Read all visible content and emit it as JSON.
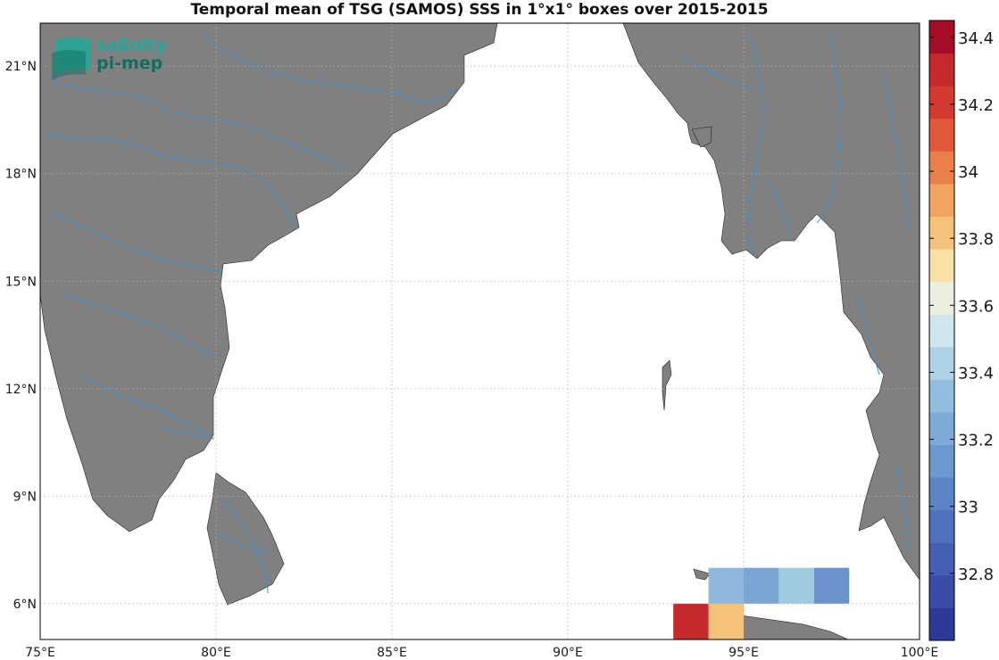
{
  "title": "Temporal mean of TSG (SAMOS) SSS in 1°x1° boxes over 2015-2015",
  "logo": {
    "line1": "salinity",
    "line2": "pi-mep"
  },
  "map": {
    "lon_range": [
      75,
      100
    ],
    "lat_range": [
      5,
      22.2
    ],
    "lon_ticks": [
      {
        "value": 75,
        "label": "75°E"
      },
      {
        "value": 80,
        "label": "80°E"
      },
      {
        "value": 85,
        "label": "85°E"
      },
      {
        "value": 90,
        "label": "90°E"
      },
      {
        "value": 95,
        "label": "95°E"
      },
      {
        "value": 100,
        "label": "100°E"
      }
    ],
    "lat_ticks": [
      {
        "value": 6,
        "label": "6°N"
      },
      {
        "value": 9,
        "label": "9°N"
      },
      {
        "value": 12,
        "label": "12°N"
      },
      {
        "value": 15,
        "label": "15°N"
      },
      {
        "value": 18,
        "label": "18°N"
      },
      {
        "value": 21,
        "label": "21°N"
      }
    ],
    "land_color": "#808080",
    "river_color": "#3a8fd0",
    "grid": true
  },
  "colorbar": {
    "range": [
      32.6,
      34.45
    ],
    "tick_labels": [
      "32.8",
      "33",
      "33.2",
      "33.4",
      "33.6",
      "33.8",
      "34",
      "34.2",
      "34.4"
    ],
    "colors": [
      "#2d3b98",
      "#3a4ca6",
      "#4560b3",
      "#5072bd",
      "#5c84c6",
      "#6c97cf",
      "#7eaad7",
      "#93bddf",
      "#aed2e6",
      "#cfe6ee",
      "#eceedf",
      "#f7e2a4",
      "#f5c27a",
      "#f0a45f",
      "#ea7f49",
      "#e2583a",
      "#d43b30",
      "#c42a2c",
      "#a60d26"
    ]
  },
  "sss_boxes": [
    {
      "lon": 93,
      "lat": 5,
      "sss": 34.25,
      "color": "#c42a2c"
    },
    {
      "lon": 94,
      "lat": 5,
      "sss": 33.75,
      "color": "#f5c27a"
    },
    {
      "lon": 94,
      "lat": 6,
      "sss": 33.33,
      "color": "#8fb9dc"
    },
    {
      "lon": 95,
      "lat": 6,
      "sss": 33.25,
      "color": "#7aa6d3"
    },
    {
      "lon": 96,
      "lat": 6,
      "sss": 33.38,
      "color": "#9ecbe0"
    },
    {
      "lon": 97,
      "lat": 6,
      "sss": 33.2,
      "color": "#6c92cd"
    }
  ]
}
